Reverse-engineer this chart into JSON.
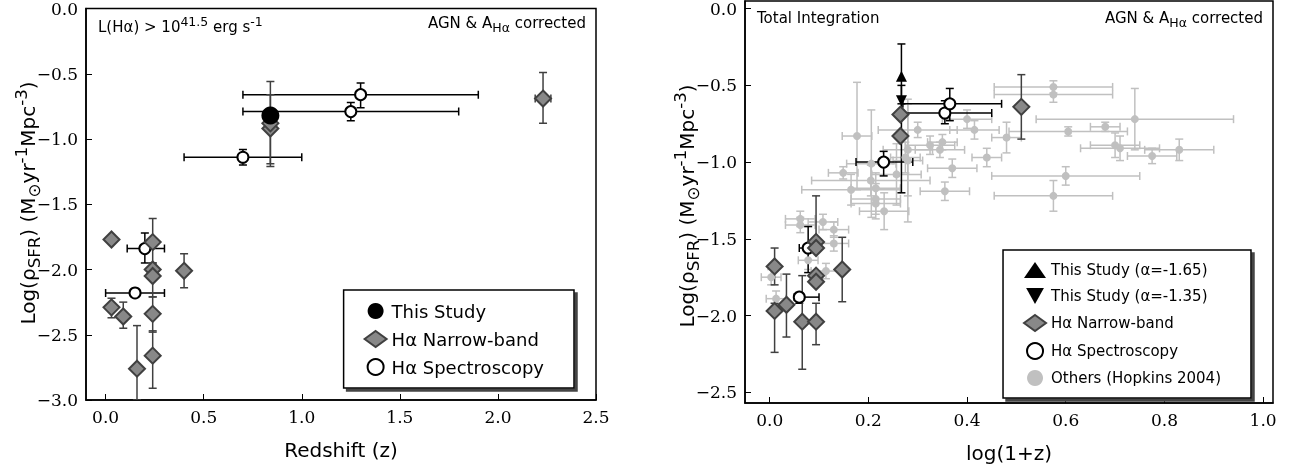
{
  "chart_data": [
    {
      "type": "scatter",
      "xlabel": "Redshift (z)",
      "ylabel": "Log(ρ$_{SFR}$) (M$_{⊙}$yr$^{-1}$Mpc$^{-3}$)",
      "annotations": [
        "L(Hα) > 10$^{41.5}$  erg s$^{-1}$",
        "AGN & A$_{Hα}$ corrected"
      ],
      "xlim": [
        -0.1,
        2.5
      ],
      "ylim": [
        -3.0,
        0.0
      ],
      "xticks": [
        {
          "value": 0,
          "label": "0.0"
        },
        {
          "value": 0.5,
          "label": "0.5"
        },
        {
          "value": 1,
          "label": "1.0"
        },
        {
          "value": 1.5,
          "label": "1.5"
        },
        {
          "value": 2,
          "label": "2.0"
        },
        {
          "value": 2.5,
          "label": "2.5"
        }
      ],
      "yticks": [
        {
          "value": -3,
          "label": "−3.0"
        },
        {
          "value": -2.5,
          "label": "−2.5"
        },
        {
          "value": -2,
          "label": "−2.0"
        },
        {
          "value": -1.5,
          "label": "−1.5"
        },
        {
          "value": -1,
          "label": "−1.0"
        },
        {
          "value": -0.5,
          "label": "−0.5"
        },
        {
          "value": 0,
          "label": "0.0"
        }
      ],
      "grid": false,
      "legend": "bottom right",
      "series": [
        {
          "name": "This Study",
          "color": "#000000",
          "marker": "circle",
          "x": [
            0.84
          ],
          "values": [
            -0.82
          ]
        },
        {
          "name": "Hα Narrow-band",
          "color": "#888888",
          "marker": "diamond",
          "x": [
            0.03,
            0.24,
            0.24,
            0.24,
            0.4,
            0.03,
            0.09,
            0.24,
            0.16,
            0.24,
            2.23,
            0.84,
            0.84
          ],
          "values": [
            -1.77,
            -1.79,
            -2.0,
            -2.05,
            -2.01,
            -2.29,
            -2.36,
            -2.34,
            -2.76,
            -2.66,
            -0.69,
            -0.92,
            -0.88
          ],
          "errors": [
            null,
            [
              -1.95,
              -1.61
            ],
            null,
            [
              -2.21,
              -1.95
            ],
            [
              -2.14,
              -1.88
            ],
            [
              -2.37,
              -2.22
            ],
            [
              -2.45,
              -2.25
            ],
            [
              -2.48,
              -2.21
            ],
            [
              -3.0,
              -2.43
            ],
            [
              -2.91,
              -2.47
            ],
            [
              -0.88,
              -0.49
            ],
            [
              -1.21,
              -0.56
            ],
            [
              -1.19,
              -0.66
            ]
          ],
          "xerrors": [
            null,
            null,
            null,
            null,
            null,
            null,
            null,
            null,
            null,
            null,
            [
              2.19,
              2.27
            ],
            null,
            null
          ]
        },
        {
          "name": "Hα Spectroscopy",
          "color": "#000000",
          "marker": "open-circle",
          "x": [
            0.7,
            1.25,
            1.3,
            0.2,
            0.15
          ],
          "values": [
            -1.14,
            -0.79,
            -0.66,
            -1.84,
            -2.18
          ],
          "errors": [
            [
              -1.2,
              -1.08
            ],
            [
              -0.86,
              -0.72
            ],
            [
              -0.76,
              -0.57
            ],
            [
              -1.95,
              -1.72
            ],
            null
          ],
          "xerrors": [
            [
              0.4,
              1.0
            ],
            [
              0.7,
              1.8
            ],
            [
              0.7,
              1.9
            ],
            [
              0.11,
              0.3
            ],
            [
              0.0,
              0.3
            ]
          ]
        }
      ]
    },
    {
      "type": "scatter",
      "xlabel": "log(1+z)",
      "ylabel": "Log(ρ$_{SFR}$) (M$_{⊙}$yr$^{-1}$Mpc$^{-3}$)",
      "annotations": [
        "Total Integration",
        "AGN & A$_{Hα}$ corrected"
      ],
      "xlim": [
        -0.05,
        1.02
      ],
      "ylim": [
        -2.57,
        0.05
      ],
      "xticks": [
        {
          "value": 0,
          "label": "0.0"
        },
        {
          "value": 0.2,
          "label": "0.2"
        },
        {
          "value": 0.4,
          "label": "0.4"
        },
        {
          "value": 0.6,
          "label": "0.6"
        },
        {
          "value": 0.8,
          "label": "0.8"
        },
        {
          "value": 1,
          "label": "1.0"
        }
      ],
      "yticks": [
        {
          "value": -2.5,
          "label": "−2.5"
        },
        {
          "value": -2,
          "label": "−2.0"
        },
        {
          "value": -1.5,
          "label": "−1.5"
        },
        {
          "value": -1,
          "label": "−1.0"
        },
        {
          "value": -0.5,
          "label": "−0.5"
        },
        {
          "value": 0,
          "label": "0.0"
        }
      ],
      "grid": false,
      "legend": "bottom right",
      "series": [
        {
          "name": "This Study (α=-1.65)",
          "color": "#000000",
          "marker": "triangle",
          "x": [
            0.267
          ],
          "values": [
            -0.44
          ],
          "errors": [
            [
              -0.62,
              -0.23
            ]
          ]
        },
        {
          "name": "This Study (α=-1.35)",
          "color": "#000000",
          "marker": "triangle-down",
          "x": [
            0.267
          ],
          "values": [
            -0.6
          ],
          "errors": [
            [
              -1.2,
              -0.5
            ]
          ]
        },
        {
          "name": "Hα Narrow-band",
          "color": "#888888",
          "marker": "diamond",
          "x": [
            0.265,
            0.265,
            0.51,
            0.01,
            0.01,
            0.034,
            0.066,
            0.094,
            0.094,
            0.094,
            0.094,
            0.094,
            0.147
          ],
          "values": [
            -0.69,
            -0.83,
            -0.64,
            -1.68,
            -1.97,
            -1.93,
            -2.04,
            -2.04,
            -1.52,
            -1.56,
            -1.74,
            -1.78,
            -1.7
          ],
          "errors": [
            null,
            null,
            [
              -0.85,
              -0.43
            ],
            [
              -1.8,
              -1.56
            ],
            [
              -2.24,
              -1.92
            ],
            [
              -2.14,
              -1.73
            ],
            [
              -2.35,
              -1.74
            ],
            [
              -2.19,
              -1.92
            ],
            [
              -1.58,
              -1.22
            ],
            null,
            null,
            null,
            [
              -1.91,
              -1.49
            ]
          ]
        },
        {
          "name": "Hα Spectroscopy",
          "color": "#000000",
          "marker": "open-circle",
          "x": [
            0.231,
            0.078,
            0.06,
            0.355,
            0.365
          ],
          "values": [
            -1.0,
            -1.56,
            -1.88,
            -0.68,
            -0.62
          ],
          "errors": [
            [
              -1.09,
              -0.93
            ],
            [
              -1.72,
              -1.42
            ],
            [
              -1.92,
              -1.85
            ],
            [
              -0.75,
              -0.6
            ],
            [
              -0.73,
              -0.52
            ]
          ],
          "xerrors": [
            [
              0.175,
              0.29
            ],
            [
              0.06,
              0.09
            ],
            [
              0.05,
              0.1
            ],
            [
              0.27,
              0.45
            ],
            [
              0.27,
              0.47
            ]
          ]
        },
        {
          "name": "Others (Hopkins 2004)",
          "color": "#c0c0c0",
          "marker": "circle",
          "x": [
            0.177,
            0.206,
            0.149,
            0.165,
            0.205,
            0.215,
            0.215,
            0.215,
            0.232,
            0.257,
            0.275,
            0.28,
            0.28,
            0.3,
            0.325,
            0.345,
            0.35,
            0.37,
            0.355,
            0.4,
            0.415,
            0.44,
            0.48,
            0.575,
            0.575,
            0.605,
            0.6,
            0.575,
            0.68,
            0.7,
            0.71,
            0.74,
            0.775,
            0.83,
            0.062,
            0.062,
            0.108,
            0.13,
            0.13,
            0.078,
            0.114,
            0.003,
            0.013
          ],
          "values": [
            -0.83,
            -1.01,
            -1.07,
            -1.18,
            -1.12,
            -1.17,
            -1.24,
            -1.27,
            -1.32,
            -1.08,
            -0.97,
            -0.99,
            -0.92,
            -0.79,
            -0.89,
            -0.92,
            -0.87,
            -1.04,
            -1.19,
            -0.72,
            -0.79,
            -0.97,
            -0.84,
            -0.51,
            -0.56,
            -0.8,
            -1.09,
            -1.22,
            -0.77,
            -0.89,
            -0.91,
            -0.72,
            -0.96,
            -0.92,
            -1.37,
            -1.41,
            -1.39,
            -1.44,
            -1.53,
            -1.64,
            -1.71,
            -1.75,
            -1.89
          ],
          "errors": [
            0.35,
            0.35,
            0.04,
            0.1,
            0.1,
            0.1,
            0.1,
            0.1,
            0.12,
            0.2,
            0.1,
            0.4,
            0.3,
            0.05,
            0.06,
            0.05,
            0.05,
            0.06,
            0.06,
            0.06,
            0.06,
            0.06,
            0.1,
            0.04,
            0.05,
            0.03,
            0.06,
            0.1,
            0.03,
            0.08,
            0.08,
            0.2,
            0.05,
            0.07,
            0.05,
            0.05,
            0.05,
            0.05,
            0.05,
            0.06,
            0.05,
            0.05,
            0.05
          ],
          "xerrors": [
            0.03,
            0.05,
            0.03,
            0.1,
            0.12,
            0.05,
            0.05,
            0.05,
            0.05,
            0.05,
            0.03,
            0.03,
            0.05,
            0.08,
            0.05,
            0.05,
            0.03,
            0.05,
            0.05,
            0.05,
            0.05,
            0.03,
            0.03,
            0.12,
            0.12,
            0.12,
            0.15,
            0.12,
            0.03,
            0.05,
            0.08,
            0.2,
            0.05,
            0.07,
            0.03,
            0.03,
            0.03,
            0.03,
            0.03,
            0.02,
            0.03,
            0.02,
            0.02
          ]
        }
      ]
    }
  ]
}
